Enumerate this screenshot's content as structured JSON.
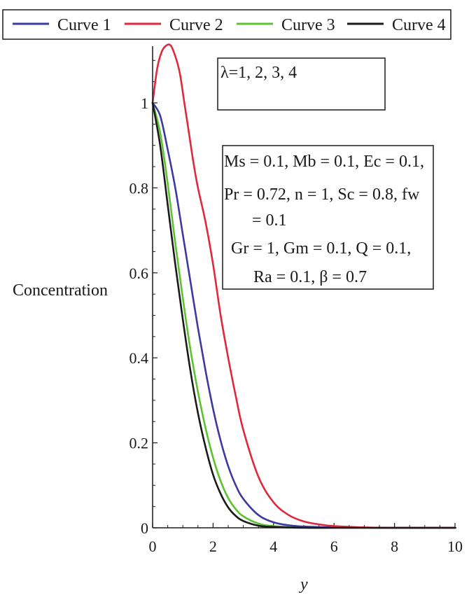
{
  "chart_data": {
    "type": "line",
    "xlabel": "y",
    "ylabel": "Concentration",
    "xlim": [
      0,
      10
    ],
    "ylim": [
      0,
      1.14
    ],
    "xticks": [
      0,
      2,
      4,
      6,
      8,
      10
    ],
    "yticks": [
      0,
      0.2,
      0.4,
      0.6,
      0.8,
      1
    ],
    "xtick_labels": [
      "0",
      "2",
      "4",
      "6",
      "8",
      "10"
    ],
    "ytick_labels": [
      "0",
      "0.2",
      "0.4",
      "0.6",
      "0.8",
      "1"
    ],
    "legend_placement": "top",
    "series": [
      {
        "name": "Curve 1",
        "color": "#3a3aa0",
        "x": [
          0,
          0.25,
          0.5,
          0.75,
          1.0,
          1.25,
          1.5,
          1.75,
          2.0,
          2.25,
          2.5,
          2.75,
          3.0,
          3.5,
          4.0,
          4.5,
          5.0,
          6.0,
          8.0,
          10.0
        ],
        "y": [
          1.0,
          0.97,
          0.89,
          0.8,
          0.69,
          0.58,
          0.47,
          0.37,
          0.28,
          0.205,
          0.145,
          0.1,
          0.068,
          0.03,
          0.013,
          0.006,
          0.003,
          0.001,
          0.0,
          0.0
        ]
      },
      {
        "name": "Curve 2",
        "color": "#e0283c",
        "x": [
          0,
          0.15,
          0.3,
          0.45,
          0.6,
          0.75,
          0.9,
          1.05,
          1.2,
          1.35,
          1.5,
          1.75,
          2.0,
          2.25,
          2.5,
          2.75,
          3.0,
          3.5,
          4.0,
          4.5,
          5.0,
          5.5,
          6.0,
          7.0,
          8.0,
          10.0
        ],
        "y": [
          1.0,
          1.08,
          1.12,
          1.135,
          1.135,
          1.11,
          1.07,
          1.0,
          0.93,
          0.86,
          0.8,
          0.72,
          0.62,
          0.5,
          0.4,
          0.31,
          0.23,
          0.12,
          0.06,
          0.03,
          0.015,
          0.008,
          0.004,
          0.001,
          0.0,
          0.0
        ]
      },
      {
        "name": "Curve 3",
        "color": "#5cc22e",
        "x": [
          0,
          0.25,
          0.5,
          0.75,
          1.0,
          1.25,
          1.5,
          1.75,
          2.0,
          2.25,
          2.5,
          2.75,
          3.0,
          3.5,
          4.0,
          5.0,
          6.0,
          8.0,
          10.0
        ],
        "y": [
          1.0,
          0.93,
          0.81,
          0.67,
          0.54,
          0.42,
          0.32,
          0.235,
          0.165,
          0.11,
          0.07,
          0.044,
          0.027,
          0.01,
          0.004,
          0.001,
          0.0,
          0.0,
          0.0
        ]
      },
      {
        "name": "Curve 4",
        "color": "#1a1a1a",
        "x": [
          0,
          0.25,
          0.5,
          0.75,
          1.0,
          1.25,
          1.5,
          1.75,
          2.0,
          2.25,
          2.5,
          2.75,
          3.0,
          3.5,
          4.0,
          5.0,
          6.0,
          8.0,
          10.0
        ],
        "y": [
          1.0,
          0.9,
          0.76,
          0.62,
          0.49,
          0.37,
          0.27,
          0.19,
          0.125,
          0.08,
          0.048,
          0.028,
          0.016,
          0.005,
          0.002,
          0.0,
          0.0,
          0.0,
          0.0
        ]
      }
    ],
    "annotations": {
      "lambda_note": "λ=1, 2, 3, 4",
      "params": {
        "line1": "Ms = 0.1, Mb = 0.1, Ec = 0.1,",
        "line2": "Pr = 0.72, n = 1,  Sc = 0.8, fw",
        "line3": "= 0.1",
        "line4": "Gr = 1, Gm = 0.1, Q = 0.1,",
        "line5": "Ra = 0.1, β = 0.7"
      }
    }
  }
}
